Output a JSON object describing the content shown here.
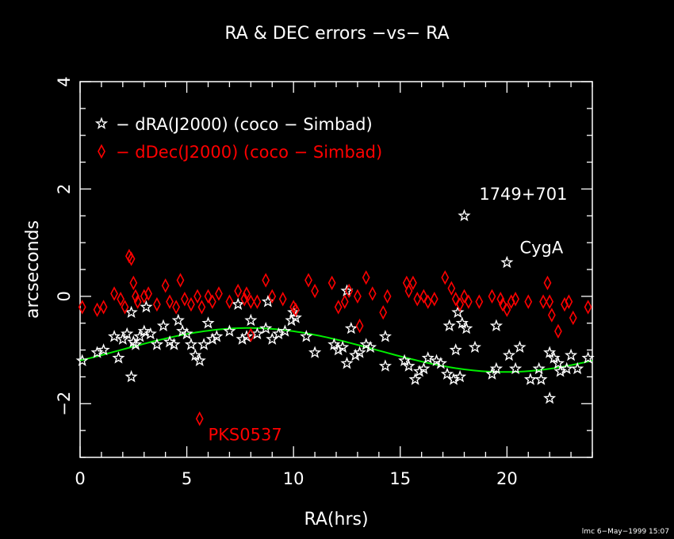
{
  "chart_data": {
    "type": "scatter",
    "title": "RA & DEC errors −vs− RA",
    "xlabel": "RA(hrs)",
    "ylabel": "arcseconds",
    "xlim": [
      0,
      24
    ],
    "ylim": [
      -3,
      4
    ],
    "xticks": [
      0,
      5,
      10,
      15,
      20
    ],
    "yticks": [
      -2,
      0,
      2,
      4
    ],
    "grid": false,
    "legend_position": "top-left",
    "series": [
      {
        "name": "− dRA(J2000) (coco − Simbad)",
        "marker": "star",
        "color": "#ffffff",
        "points": [
          [
            0.1,
            -1.2
          ],
          [
            0.8,
            -1.05
          ],
          [
            1.1,
            -1.0
          ],
          [
            1.6,
            -0.75
          ],
          [
            1.8,
            -1.15
          ],
          [
            2.0,
            -0.8
          ],
          [
            2.2,
            -0.7
          ],
          [
            2.4,
            -1.5
          ],
          [
            2.4,
            -0.3
          ],
          [
            2.5,
            -0.85
          ],
          [
            2.6,
            -0.9
          ],
          [
            2.8,
            -0.75
          ],
          [
            3.0,
            -0.65
          ],
          [
            3.1,
            -0.2
          ],
          [
            3.3,
            -0.7
          ],
          [
            3.6,
            -0.9
          ],
          [
            3.9,
            -0.55
          ],
          [
            4.2,
            -0.85
          ],
          [
            4.4,
            -0.9
          ],
          [
            4.6,
            -0.45
          ],
          [
            4.8,
            -0.65
          ],
          [
            5.0,
            -0.7
          ],
          [
            5.2,
            -0.9
          ],
          [
            5.4,
            -1.1
          ],
          [
            5.6,
            -1.2
          ],
          [
            5.8,
            -0.9
          ],
          [
            6.0,
            -0.5
          ],
          [
            6.2,
            -0.8
          ],
          [
            6.4,
            -0.75
          ],
          [
            7.0,
            -0.65
          ],
          [
            7.4,
            -0.15
          ],
          [
            7.6,
            -0.8
          ],
          [
            7.8,
            -0.75
          ],
          [
            8.0,
            -0.45
          ],
          [
            8.3,
            -0.7
          ],
          [
            8.7,
            -0.6
          ],
          [
            8.8,
            -0.1
          ],
          [
            9.0,
            -0.8
          ],
          [
            9.3,
            -0.7
          ],
          [
            9.6,
            -0.65
          ],
          [
            9.9,
            -0.45
          ],
          [
            10.0,
            -0.3
          ],
          [
            10.1,
            -0.4
          ],
          [
            10.6,
            -0.75
          ],
          [
            11.0,
            -1.05
          ],
          [
            11.9,
            -0.9
          ],
          [
            12.1,
            -1.0
          ],
          [
            12.3,
            -0.95
          ],
          [
            12.5,
            -1.25
          ],
          [
            12.5,
            0.1
          ],
          [
            12.7,
            -0.6
          ],
          [
            12.9,
            -1.1
          ],
          [
            13.1,
            -1.05
          ],
          [
            13.4,
            -0.9
          ],
          [
            13.6,
            -0.95
          ],
          [
            14.3,
            -1.3
          ],
          [
            14.3,
            -0.75
          ],
          [
            15.2,
            -1.2
          ],
          [
            15.4,
            -1.3
          ],
          [
            15.7,
            -1.55
          ],
          [
            15.9,
            -1.4
          ],
          [
            16.1,
            -1.35
          ],
          [
            16.3,
            -1.15
          ],
          [
            16.7,
            -1.2
          ],
          [
            16.9,
            -1.25
          ],
          [
            17.2,
            -1.45
          ],
          [
            17.3,
            -0.55
          ],
          [
            17.5,
            -1.55
          ],
          [
            17.6,
            -1.0
          ],
          [
            17.7,
            -0.3
          ],
          [
            17.8,
            -1.5
          ],
          [
            17.9,
            -0.5
          ],
          [
            18.1,
            -0.6
          ],
          [
            18.5,
            -0.95
          ],
          [
            18.0,
            1.5
          ],
          [
            19.3,
            -1.45
          ],
          [
            19.5,
            -1.35
          ],
          [
            19.5,
            -0.55
          ],
          [
            20.0,
            0.63
          ],
          [
            20.1,
            -1.1
          ],
          [
            20.4,
            -1.35
          ],
          [
            20.6,
            -0.95
          ],
          [
            21.1,
            -1.55
          ],
          [
            21.5,
            -1.35
          ],
          [
            21.6,
            -1.55
          ],
          [
            22.0,
            -1.9
          ],
          [
            22.0,
            -1.05
          ],
          [
            22.2,
            -1.15
          ],
          [
            22.4,
            -1.25
          ],
          [
            22.5,
            -1.4
          ],
          [
            22.8,
            -1.35
          ],
          [
            23.0,
            -1.1
          ],
          [
            23.3,
            -1.35
          ],
          [
            23.8,
            -1.15
          ]
        ]
      },
      {
        "name": "− dDec(J2000) (coco − Simbad)",
        "marker": "diamond",
        "color": "#ff0000",
        "points": [
          [
            0.1,
            -0.2
          ],
          [
            0.8,
            -0.25
          ],
          [
            1.1,
            -0.2
          ],
          [
            1.6,
            0.05
          ],
          [
            1.9,
            -0.05
          ],
          [
            2.1,
            -0.2
          ],
          [
            2.3,
            0.75
          ],
          [
            2.4,
            0.7
          ],
          [
            2.5,
            0.25
          ],
          [
            2.6,
            0.0
          ],
          [
            2.7,
            -0.1
          ],
          [
            3.0,
            0.0
          ],
          [
            3.2,
            0.05
          ],
          [
            3.6,
            -0.15
          ],
          [
            4.0,
            0.2
          ],
          [
            4.2,
            -0.1
          ],
          [
            4.5,
            -0.2
          ],
          [
            4.7,
            0.3
          ],
          [
            4.9,
            -0.05
          ],
          [
            5.2,
            -0.15
          ],
          [
            5.5,
            0.0
          ],
          [
            5.7,
            -0.2
          ],
          [
            6.0,
            0.0
          ],
          [
            6.2,
            -0.1
          ],
          [
            6.5,
            0.05
          ],
          [
            7.0,
            -0.1
          ],
          [
            7.4,
            0.1
          ],
          [
            7.7,
            -0.05
          ],
          [
            7.8,
            0.05
          ],
          [
            8.0,
            -0.1
          ],
          [
            8.3,
            -0.1
          ],
          [
            8.7,
            0.3
          ],
          [
            9.0,
            0.0
          ],
          [
            9.5,
            -0.05
          ],
          [
            10.0,
            -0.2
          ],
          [
            10.1,
            -0.25
          ],
          [
            10.7,
            0.3
          ],
          [
            11.0,
            0.1
          ],
          [
            11.8,
            0.25
          ],
          [
            12.1,
            -0.2
          ],
          [
            12.4,
            -0.1
          ],
          [
            12.6,
            0.1
          ],
          [
            13.0,
            0.0
          ],
          [
            13.1,
            -0.55
          ],
          [
            13.4,
            0.35
          ],
          [
            13.7,
            0.05
          ],
          [
            14.2,
            -0.3
          ],
          [
            14.4,
            0.0
          ],
          [
            15.3,
            0.25
          ],
          [
            15.4,
            0.1
          ],
          [
            15.6,
            0.25
          ],
          [
            15.8,
            -0.05
          ],
          [
            16.1,
            0.0
          ],
          [
            16.3,
            -0.1
          ],
          [
            16.6,
            -0.05
          ],
          [
            17.1,
            0.35
          ],
          [
            17.4,
            0.15
          ],
          [
            17.6,
            -0.05
          ],
          [
            17.8,
            -0.15
          ],
          [
            18.0,
            0.0
          ],
          [
            18.2,
            -0.1
          ],
          [
            18.7,
            -0.1
          ],
          [
            19.3,
            0.0
          ],
          [
            19.7,
            -0.05
          ],
          [
            19.8,
            -0.15
          ],
          [
            20.0,
            -0.25
          ],
          [
            20.2,
            -0.1
          ],
          [
            20.4,
            -0.05
          ],
          [
            21.0,
            -0.1
          ],
          [
            21.7,
            -0.1
          ],
          [
            21.9,
            0.25
          ],
          [
            22.0,
            -0.1
          ],
          [
            22.1,
            -0.35
          ],
          [
            22.4,
            -0.65
          ],
          [
            22.7,
            -0.15
          ],
          [
            22.9,
            -0.1
          ],
          [
            23.1,
            -0.4
          ],
          [
            23.8,
            -0.2
          ],
          [
            5.6,
            -2.28
          ],
          [
            8.0,
            -0.72
          ]
        ]
      }
    ],
    "curve": {
      "color": "#00ee00",
      "mean": -1.0,
      "amplitude": 0.41,
      "period_hrs": 24,
      "peak_ra": 7.9,
      "sample_step_hrs": 0.2
    },
    "annotations": [
      {
        "text": "1749+701",
        "color": "#ffffff",
        "x": 18.7,
        "y": 1.8
      },
      {
        "text": "CygA",
        "color": "#ffffff",
        "x": 20.6,
        "y": 0.8
      },
      {
        "text": "PKS0537",
        "color": "#ff0000",
        "x": 6.0,
        "y": -2.68
      }
    ]
  },
  "footer": "lmc  6−May−1999 15:07"
}
